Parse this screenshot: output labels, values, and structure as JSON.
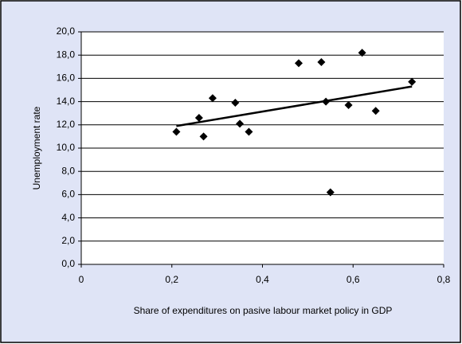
{
  "chart_data": {
    "type": "scatter",
    "x_label": "Share of expenditures on pasive labour market policy in GDP",
    "y_label": "Unemployment rate",
    "x": [
      0.21,
      0.26,
      0.27,
      0.29,
      0.34,
      0.35,
      0.37,
      0.48,
      0.53,
      0.54,
      0.55,
      0.59,
      0.62,
      0.65,
      0.73
    ],
    "values": [
      11.4,
      12.6,
      11.0,
      14.3,
      13.9,
      12.1,
      11.4,
      17.3,
      17.4,
      14.0,
      6.2,
      13.7,
      18.2,
      13.2,
      15.7
    ],
    "color": "#000000",
    "trendline": {
      "x": [
        0.21,
        0.73
      ],
      "y": [
        11.9,
        15.3
      ],
      "color": "#000000"
    },
    "xlim": [
      0,
      0.8
    ],
    "xticks": [
      0,
      {
        "value": 0.2,
        "label": "0,2"
      },
      {
        "value": 0.4,
        "label": "0,4"
      },
      {
        "value": 0.6,
        "label": "0,6"
      },
      {
        "value": 0.8,
        "label": "0,8"
      }
    ],
    "ylim": [
      0,
      20
    ],
    "yticks": [
      {
        "value": 0,
        "label": "0,0"
      },
      {
        "value": 2,
        "label": "2,0"
      },
      {
        "value": 4,
        "label": "4,0"
      },
      {
        "value": 6,
        "label": "6,0"
      },
      {
        "value": 8,
        "label": "8,0"
      },
      {
        "value": 10,
        "label": "10,0"
      },
      {
        "value": 12,
        "label": "12,0"
      },
      {
        "value": 14,
        "label": "14,0"
      },
      {
        "value": 16,
        "label": "16,0"
      },
      {
        "value": 18,
        "label": "18,0"
      },
      {
        "value": 20,
        "label": "20,0"
      }
    ],
    "grid": true
  }
}
